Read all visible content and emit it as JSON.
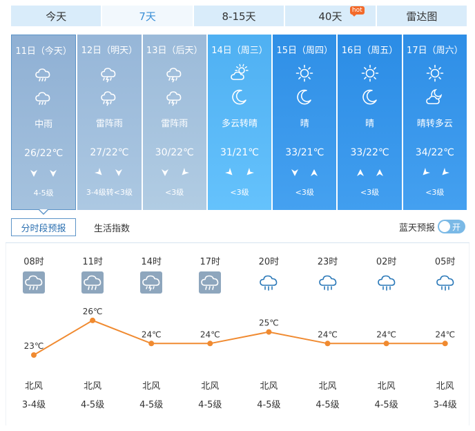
{
  "tabs": [
    {
      "label": "今天"
    },
    {
      "label": "7天",
      "active": true
    },
    {
      "label": "8-15天"
    },
    {
      "label": "40天",
      "badge": "hot"
    },
    {
      "label": "雷达图"
    }
  ],
  "days": [
    {
      "date": "11日（今天）",
      "icon1": "moderate-rain-icon",
      "icon2": "moderate-rain-icon",
      "weather": "中雨",
      "temp": "26/22℃",
      "wind_arrow1": "down",
      "wind_arrow2": "down",
      "level": "4-5级",
      "bg": "#8fb0d4",
      "selected": true
    },
    {
      "date": "12日（明天）",
      "icon1": "thunder-shower-icon",
      "icon2": "thunder-shower-icon",
      "weather": "雷阵雨",
      "temp": "27/22℃",
      "wind_arrow1": "down-right",
      "wind_arrow2": "down",
      "level": "3-4级转<3级",
      "bg": "#96b6d8"
    },
    {
      "date": "13日（后天）",
      "icon1": "thunder-shower-icon",
      "icon2": "thunder-shower-icon",
      "weather": "雷阵雨",
      "temp": "30/22℃",
      "wind_arrow1": "down",
      "wind_arrow2": "down-left",
      "level": "<3级",
      "bg": "#9bbad9"
    },
    {
      "date": "14日（周三）",
      "icon1": "partly-cloudy-day-icon",
      "icon2": "moon-icon",
      "weather": "多云转晴",
      "temp": "31/21℃",
      "wind_arrow1": "down-right",
      "wind_arrow2": "down-left",
      "level": "<3级",
      "bg": "#4fb0f2"
    },
    {
      "date": "15日（周四）",
      "icon1": "sun-icon",
      "icon2": "moon-icon",
      "weather": "晴",
      "temp": "33/21℃",
      "wind_arrow1": "down",
      "wind_arrow2": "up",
      "level": "<3级",
      "bg": "#2f8fe6"
    },
    {
      "date": "16日（周五）",
      "icon1": "sun-icon",
      "icon2": "moon-icon",
      "weather": "晴",
      "temp": "33/22℃",
      "wind_arrow1": "up",
      "wind_arrow2": "up",
      "level": "<3级",
      "bg": "#2b8ce5"
    },
    {
      "date": "17日（周六）",
      "icon1": "sun-icon",
      "icon2": "cloudy-night-icon",
      "weather": "晴转多云",
      "temp": "34/22℃",
      "wind_arrow1": "down-left",
      "wind_arrow2": "down-left",
      "level": "<3级",
      "bg": "#2e8ee6"
    }
  ],
  "subtabs": {
    "hourly": "分时段预报",
    "life": "生活指数"
  },
  "blue_sky": {
    "label": "蓝天预报",
    "toggle": "开"
  },
  "hourly": [
    {
      "time": "08时",
      "icon": "rain-box-icon",
      "temp": 23,
      "temp_label": "23℃",
      "wind": "北风",
      "level": "3-4级"
    },
    {
      "time": "11时",
      "icon": "rain-box-icon",
      "temp": 26,
      "temp_label": "26℃",
      "wind": "北风",
      "level": "4-5级"
    },
    {
      "time": "14时",
      "icon": "thunder-box-icon",
      "temp": 24,
      "temp_label": "24℃",
      "wind": "北风",
      "level": "4-5级"
    },
    {
      "time": "17时",
      "icon": "rain-box-icon",
      "temp": 24,
      "temp_label": "24℃",
      "wind": "北风",
      "level": "4-5级"
    },
    {
      "time": "20时",
      "icon": "rain-outline-icon",
      "temp": 25,
      "temp_label": "25℃",
      "wind": "北风",
      "level": "4-5级"
    },
    {
      "time": "23时",
      "icon": "rain-outline-icon",
      "temp": 24,
      "temp_label": "24℃",
      "wind": "北风",
      "level": "4-5级"
    },
    {
      "time": "02时",
      "icon": "rain-outline-icon",
      "temp": 24,
      "temp_label": "24℃",
      "wind": "北风",
      "level": "4-5级"
    },
    {
      "time": "05时",
      "icon": "rain-outline-icon",
      "temp": 24,
      "temp_label": "24℃",
      "wind": "北风",
      "level": "3-4级"
    }
  ],
  "colors": {
    "line": "#f08a30",
    "icon_box": "#8ea6bd",
    "icon_outline": "#2a78b8"
  }
}
